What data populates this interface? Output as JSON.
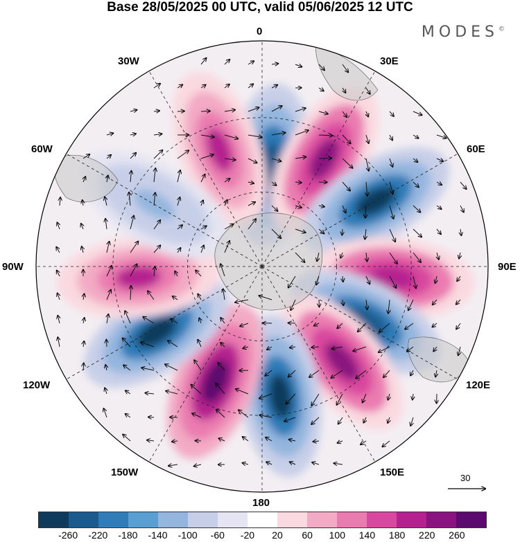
{
  "header": {
    "title": "Base 28/05/2025 00 UTC, valid 05/06/2025 12 UTC",
    "brand": "MODES",
    "brand_mark": "©"
  },
  "map": {
    "projection": "south-polar-stereographic",
    "longitude_labels": {
      "top": "0",
      "top_left": "30W",
      "top_right": "30E",
      "upper_left": "60W",
      "upper_right": "60E",
      "left": "90W",
      "right": "90E",
      "lower_left": "120W",
      "lower_right": "120E",
      "bottom_left": "150W",
      "bottom_right": "150E",
      "bottom": "180"
    },
    "wind_vectors": true,
    "reference_vector": {
      "label": "30",
      "value": 30
    },
    "anomalies": [
      {
        "sign": "negative",
        "magnitude": 240,
        "angle_deg": 5,
        "radius": 0.45
      },
      {
        "sign": "positive",
        "magnitude": 220,
        "angle_deg": 30,
        "radius": 0.55
      },
      {
        "sign": "negative",
        "magnitude": 260,
        "angle_deg": 60,
        "radius": 0.58
      },
      {
        "sign": "positive",
        "magnitude": 200,
        "angle_deg": 95,
        "radius": 0.58
      },
      {
        "sign": "negative",
        "magnitude": 240,
        "angle_deg": 118,
        "radius": 0.52
      },
      {
        "sign": "positive",
        "magnitude": 220,
        "angle_deg": 140,
        "radius": 0.55
      },
      {
        "sign": "negative",
        "magnitude": 260,
        "angle_deg": 172,
        "radius": 0.58
      },
      {
        "sign": "positive",
        "magnitude": 260,
        "angle_deg": 202,
        "radius": 0.55
      },
      {
        "sign": "negative",
        "magnitude": 260,
        "angle_deg": 238,
        "radius": 0.55
      },
      {
        "sign": "positive",
        "magnitude": 180,
        "angle_deg": 265,
        "radius": 0.55
      },
      {
        "sign": "positive",
        "magnitude": 180,
        "angle_deg": 340,
        "radius": 0.55
      },
      {
        "sign": "negative",
        "magnitude": 120,
        "angle_deg": 300,
        "radius": 0.55
      }
    ]
  },
  "colorbar": {
    "colors": [
      "#0f3a5c",
      "#1a5a8c",
      "#2f7cb8",
      "#5a9fd1",
      "#94b6de",
      "#c7cfe8",
      "#e4e4f2",
      "#ffffff",
      "#fad9e0",
      "#f3aac4",
      "#ea7bb0",
      "#d9479e",
      "#b5218f",
      "#8a137f",
      "#5c0a6d"
    ],
    "ticks": [
      "-260",
      "-220",
      "-180",
      "-140",
      "-100",
      "-60",
      "-20",
      "20",
      "60",
      "100",
      "140",
      "180",
      "220",
      "260"
    ]
  }
}
